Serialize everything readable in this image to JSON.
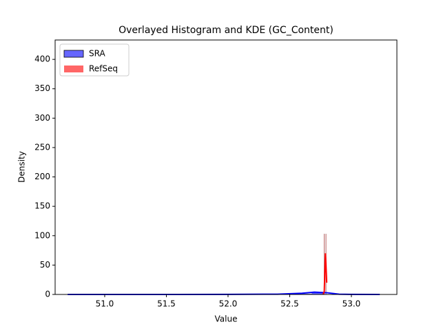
{
  "chart_data": {
    "type": "histogram",
    "title": "Overlayed Histogram and KDE (GC_Content)",
    "x_label": "Value",
    "y_label": "Density",
    "xlim": [
      50.598,
      53.369
    ],
    "ylim": [
      0,
      433
    ],
    "xticks": [
      {
        "value": 51,
        "label": "51.0"
      },
      {
        "value": 51.5,
        "label": "51.5"
      },
      {
        "value": 52,
        "label": "52.0"
      },
      {
        "value": 52.5,
        "label": "52.5"
      },
      {
        "value": 53,
        "label": "53.0"
      }
    ],
    "yticks": [
      0,
      50,
      100,
      150,
      200,
      250,
      300,
      350,
      400
    ],
    "legend": "upper left",
    "series": [
      {
        "name": "SRA",
        "color": "#0000ff",
        "bins": [
          50.7,
          50.9,
          51.1,
          51.3,
          51.5,
          51.7,
          51.9,
          52.1,
          52.3,
          52.5,
          52.68,
          52.78,
          52.9,
          53.1
        ],
        "values": [
          0.05,
          0,
          0,
          0,
          0,
          0,
          0,
          0.05,
          0.2,
          1,
          4,
          0.3,
          0.05
        ],
        "kde_x": [
          50.7,
          51.5,
          52.0,
          52.4,
          52.6,
          52.7,
          52.8,
          52.9,
          53.0,
          53.23
        ],
        "kde_y": [
          0.02,
          0.05,
          0.1,
          0.5,
          2,
          4,
          3,
          0.5,
          0.1,
          0.02
        ]
      },
      {
        "name": "RefSeq",
        "color": "#ff0000",
        "bins": [
          52.778,
          52.782,
          52.792,
          52.796
        ],
        "values": [
          103,
          0,
          103
        ],
        "kde_x": [
          52.77,
          52.78,
          52.785,
          52.79,
          52.795,
          52.8
        ],
        "kde_y": [
          0,
          5,
          40,
          70,
          45,
          20
        ]
      }
    ]
  }
}
